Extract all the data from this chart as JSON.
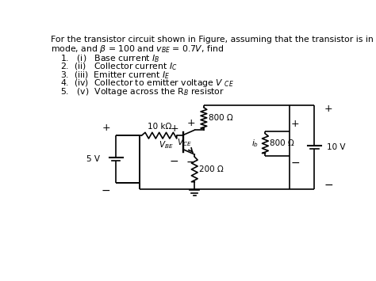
{
  "bg_color": "#ffffff",
  "text_color": "#000000",
  "fs_body": 7.8,
  "fs_small": 7.5,
  "title1": "For the transistor circuit shown in Figure, assuming that the transistor is in the forward active",
  "title2": "mode, and $\\beta$ = 100 and $v_{BE}$ = 0.7$V$, find",
  "items": [
    "1.   (i)   Base current $I_B$",
    "2.  (ii)   Collector current $I_C$",
    "3.  (iii)  Emitter current $I_E$",
    "4.  (iv)  Collector to emitter voltage $V$ $_{CE}$",
    "5.   (v)  Voltage across the R$_B$ resistor"
  ]
}
